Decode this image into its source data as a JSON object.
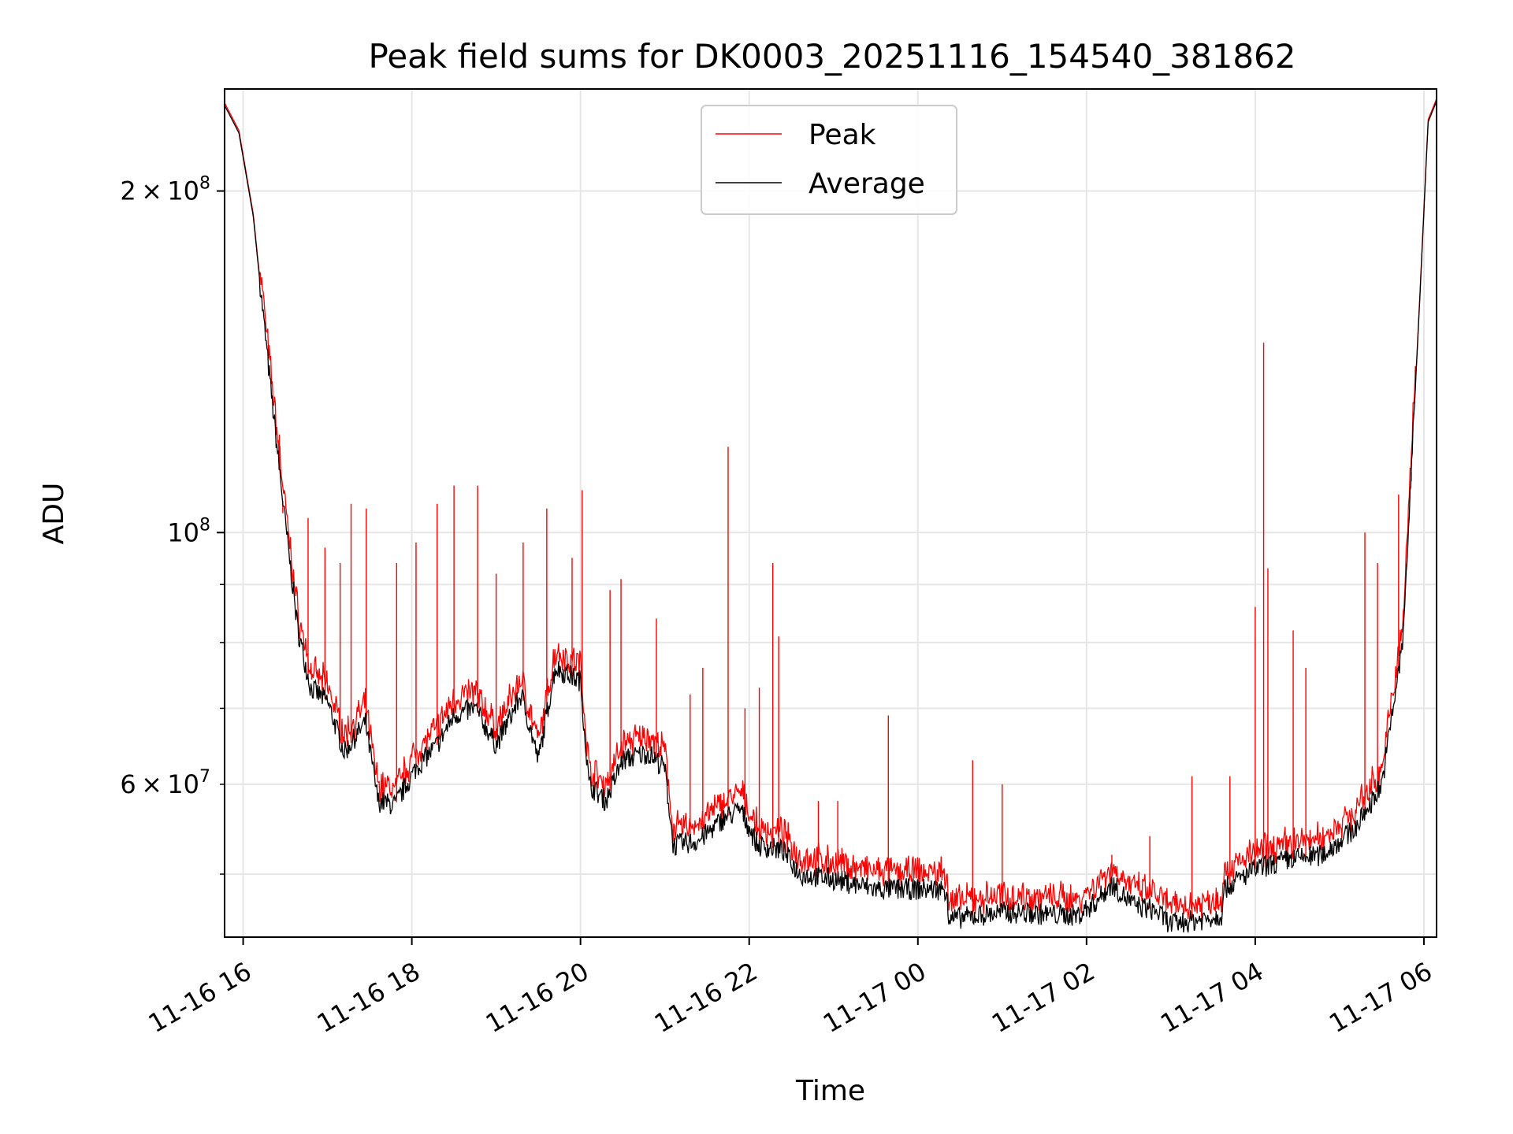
{
  "chart_data": {
    "type": "line",
    "title": "Peak field sums for DK0003_20251116_154540_381862",
    "xlabel": "Time",
    "ylabel": "ADU",
    "x_unit": "hours since 2025-11-16 00:00",
    "xlim": [
      15.78,
      30.15
    ],
    "ylim": [
      44000000,
      246000000
    ],
    "yscale": "log",
    "grid": true,
    "legend_position": "upper-center",
    "x_ticks": [
      {
        "value": 16,
        "label": "11-16 16"
      },
      {
        "value": 18,
        "label": "11-16 18"
      },
      {
        "value": 20,
        "label": "11-16 20"
      },
      {
        "value": 22,
        "label": "11-16 22"
      },
      {
        "value": 24,
        "label": "11-17 00"
      },
      {
        "value": 26,
        "label": "11-17 02"
      },
      {
        "value": 28,
        "label": "11-17 04"
      },
      {
        "value": 30,
        "label": "11-17 06"
      }
    ],
    "y_major_ticks": [
      {
        "value": 100000000,
        "label_base": "10",
        "label_exp": "8",
        "label_coef": ""
      },
      {
        "value": 200000000,
        "label_base": "10",
        "label_exp": "8",
        "label_coef": "2"
      }
    ],
    "y_minor_ticks": [
      {
        "value": 50000000,
        "label_coef": "",
        "label_base": "",
        "label_exp": ""
      },
      {
        "value": 60000000,
        "label_coef": "6",
        "label_base": "10",
        "label_exp": "7"
      },
      {
        "value": 70000000,
        "label_coef": "",
        "label_base": "",
        "label_exp": ""
      },
      {
        "value": 80000000,
        "label_coef": "",
        "label_base": "",
        "label_exp": ""
      },
      {
        "value": 90000000,
        "label_coef": "",
        "label_base": "",
        "label_exp": ""
      }
    ],
    "series": [
      {
        "name": "Peak",
        "color": "#ff0000",
        "baseline_follows": "Average",
        "baseline_offset_fraction": 0.035,
        "spikes": [
          {
            "x": 16.43,
            "y": 122000000
          },
          {
            "x": 16.47,
            "y": 104000000
          },
          {
            "x": 16.77,
            "y": 103000000
          },
          {
            "x": 16.97,
            "y": 97000000
          },
          {
            "x": 17.15,
            "y": 94000000
          },
          {
            "x": 17.28,
            "y": 106000000
          },
          {
            "x": 17.46,
            "y": 105000000
          },
          {
            "x": 17.82,
            "y": 94000000
          },
          {
            "x": 18.05,
            "y": 98000000
          },
          {
            "x": 18.3,
            "y": 106000000
          },
          {
            "x": 18.5,
            "y": 110000000
          },
          {
            "x": 18.78,
            "y": 110000000
          },
          {
            "x": 19.0,
            "y": 92000000
          },
          {
            "x": 19.32,
            "y": 98000000
          },
          {
            "x": 19.6,
            "y": 105000000
          },
          {
            "x": 19.9,
            "y": 95000000
          },
          {
            "x": 20.02,
            "y": 109000000
          },
          {
            "x": 20.35,
            "y": 89000000
          },
          {
            "x": 20.48,
            "y": 91000000
          },
          {
            "x": 20.9,
            "y": 84000000
          },
          {
            "x": 21.3,
            "y": 72000000
          },
          {
            "x": 21.45,
            "y": 76000000
          },
          {
            "x": 21.75,
            "y": 119000000
          },
          {
            "x": 21.95,
            "y": 70000000
          },
          {
            "x": 22.12,
            "y": 73000000
          },
          {
            "x": 22.28,
            "y": 94000000
          },
          {
            "x": 22.35,
            "y": 81000000
          },
          {
            "x": 22.82,
            "y": 58000000
          },
          {
            "x": 23.05,
            "y": 58000000
          },
          {
            "x": 23.65,
            "y": 69000000
          },
          {
            "x": 24.65,
            "y": 63000000
          },
          {
            "x": 25.0,
            "y": 60000000
          },
          {
            "x": 26.3,
            "y": 52000000
          },
          {
            "x": 26.75,
            "y": 54000000
          },
          {
            "x": 27.25,
            "y": 61000000
          },
          {
            "x": 27.7,
            "y": 61000000
          },
          {
            "x": 28.0,
            "y": 86000000
          },
          {
            "x": 28.1,
            "y": 147000000
          },
          {
            "x": 28.15,
            "y": 93000000
          },
          {
            "x": 28.45,
            "y": 82000000
          },
          {
            "x": 28.6,
            "y": 76000000
          },
          {
            "x": 29.3,
            "y": 100000000
          },
          {
            "x": 29.45,
            "y": 94000000
          },
          {
            "x": 29.7,
            "y": 108000000
          },
          {
            "x": 29.85,
            "y": 111000000
          }
        ]
      },
      {
        "name": "Average",
        "color": "#000000",
        "points": [
          {
            "x": 15.78,
            "y": 238000000
          },
          {
            "x": 15.95,
            "y": 225000000
          },
          {
            "x": 16.12,
            "y": 190000000
          },
          {
            "x": 16.3,
            "y": 140000000
          },
          {
            "x": 16.48,
            "y": 105000000
          },
          {
            "x": 16.65,
            "y": 82000000
          },
          {
            "x": 16.8,
            "y": 73000000
          },
          {
            "x": 17.0,
            "y": 71000000
          },
          {
            "x": 17.2,
            "y": 64000000
          },
          {
            "x": 17.45,
            "y": 68000000
          },
          {
            "x": 17.6,
            "y": 58000000
          },
          {
            "x": 17.8,
            "y": 57500000
          },
          {
            "x": 18.05,
            "y": 62000000
          },
          {
            "x": 18.3,
            "y": 65000000
          },
          {
            "x": 18.5,
            "y": 69000000
          },
          {
            "x": 18.75,
            "y": 70000000
          },
          {
            "x": 19.0,
            "y": 65000000
          },
          {
            "x": 19.3,
            "y": 72000000
          },
          {
            "x": 19.5,
            "y": 63000000
          },
          {
            "x": 19.7,
            "y": 76000000
          },
          {
            "x": 20.0,
            "y": 74000000
          },
          {
            "x": 20.1,
            "y": 60000000
          },
          {
            "x": 20.3,
            "y": 58000000
          },
          {
            "x": 20.5,
            "y": 63000000
          },
          {
            "x": 20.8,
            "y": 64000000
          },
          {
            "x": 21.0,
            "y": 62000000
          },
          {
            "x": 21.1,
            "y": 53000000
          },
          {
            "x": 21.4,
            "y": 53500000
          },
          {
            "x": 21.7,
            "y": 56000000
          },
          {
            "x": 21.9,
            "y": 57000000
          },
          {
            "x": 22.1,
            "y": 53000000
          },
          {
            "x": 22.4,
            "y": 52500000
          },
          {
            "x": 22.6,
            "y": 50000000
          },
          {
            "x": 23.0,
            "y": 49500000
          },
          {
            "x": 23.5,
            "y": 48500000
          },
          {
            "x": 24.0,
            "y": 48500000
          },
          {
            "x": 24.35,
            "y": 48500000
          },
          {
            "x": 24.36,
            "y": 45600000
          },
          {
            "x": 25.0,
            "y": 46300000
          },
          {
            "x": 25.5,
            "y": 46100000
          },
          {
            "x": 25.9,
            "y": 46000000
          },
          {
            "x": 26.1,
            "y": 47200000
          },
          {
            "x": 26.3,
            "y": 49000000
          },
          {
            "x": 26.55,
            "y": 47000000
          },
          {
            "x": 26.8,
            "y": 46500000
          },
          {
            "x": 27.0,
            "y": 45200000
          },
          {
            "x": 27.35,
            "y": 45600000
          },
          {
            "x": 27.6,
            "y": 46000000
          },
          {
            "x": 27.62,
            "y": 48500000
          },
          {
            "x": 28.0,
            "y": 50500000
          },
          {
            "x": 28.4,
            "y": 51500000
          },
          {
            "x": 28.8,
            "y": 52000000
          },
          {
            "x": 29.2,
            "y": 55000000
          },
          {
            "x": 29.5,
            "y": 60000000
          },
          {
            "x": 29.75,
            "y": 80000000
          },
          {
            "x": 29.95,
            "y": 160000000
          },
          {
            "x": 30.05,
            "y": 230000000
          },
          {
            "x": 30.15,
            "y": 240000000
          }
        ]
      }
    ]
  }
}
